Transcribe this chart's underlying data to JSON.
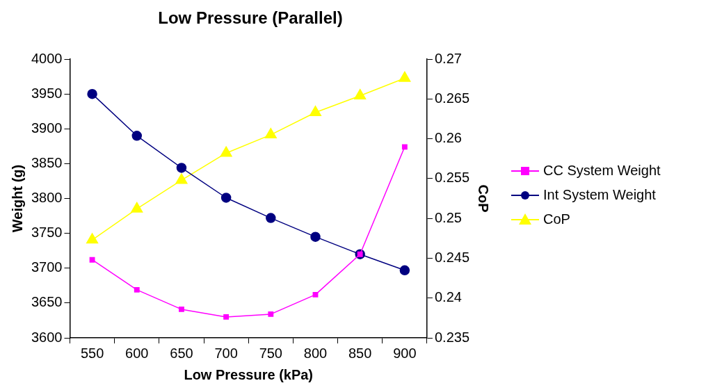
{
  "chart_data": {
    "type": "line",
    "title": "Low Pressure (Parallel)",
    "xlabel": "Low Pressure (kPa)",
    "ylabel": "Weight (g)",
    "y2label": "CoP",
    "categories": [
      "550",
      "600",
      "650",
      "700",
      "750",
      "800",
      "850",
      "900"
    ],
    "series": [
      {
        "name": "CC System Weight",
        "color": "#ff00ff",
        "marker": "square",
        "values": [
          3712,
          3669,
          3641,
          3630,
          3634,
          3662,
          3720,
          3874
        ]
      },
      {
        "name": "Int System Weight",
        "color": "#000080",
        "marker": "circle",
        "values": [
          3950,
          3890,
          3844,
          3801,
          3772,
          3745,
          3720,
          3697
        ]
      },
      {
        "name": "CoP",
        "color": "#ffff00",
        "marker": "triangle",
        "axis": "y2",
        "values": [
          0.2473,
          0.2512,
          0.2548,
          0.2582,
          0.2605,
          0.2633,
          0.2654,
          0.2676
        ]
      }
    ],
    "ylim": [
      3600,
      4000
    ],
    "yticks": [
      3600,
      3650,
      3700,
      3750,
      3800,
      3850,
      3900,
      3950,
      4000
    ],
    "y2lim": [
      0.235,
      0.27
    ],
    "y2ticks": [
      0.235,
      0.24,
      0.245,
      0.25,
      0.255,
      0.26,
      0.265,
      0.27
    ],
    "grid": false,
    "legend": "right",
    "line_style": "solid"
  }
}
